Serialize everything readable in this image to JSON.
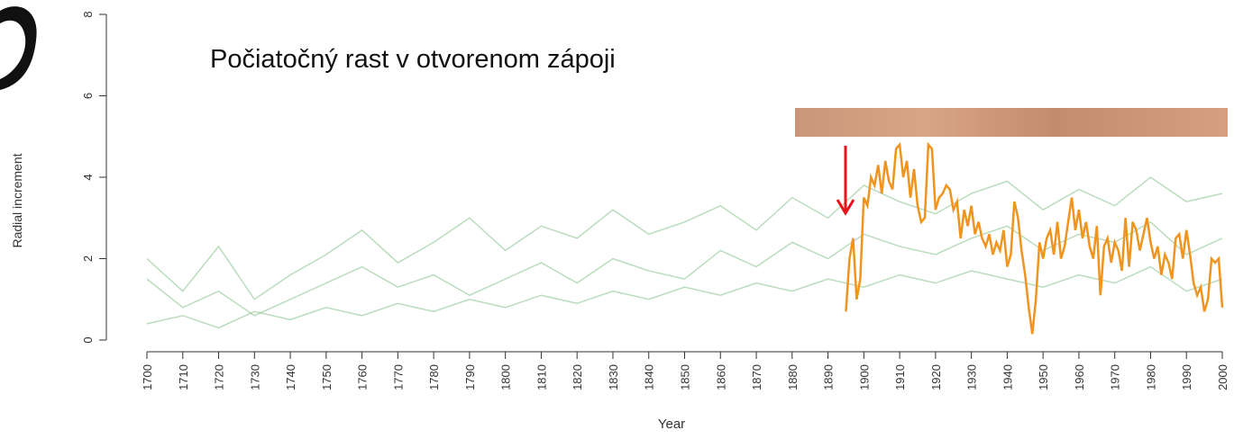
{
  "chart_data": {
    "type": "line",
    "annotation": "Počiatočný rast v otvorenom zápoji",
    "x_label": "Year",
    "y_label": "Radial increment",
    "xlim": [
      1700,
      2000
    ],
    "ylim": [
      0,
      8
    ],
    "xticks": [
      1700,
      1710,
      1720,
      1730,
      1740,
      1750,
      1760,
      1770,
      1780,
      1790,
      1800,
      1810,
      1820,
      1830,
      1840,
      1850,
      1860,
      1870,
      1880,
      1890,
      1900,
      1910,
      1920,
      1930,
      1940,
      1950,
      1960,
      1970,
      1980,
      1990,
      2000
    ],
    "yticks": [
      0,
      2,
      4,
      6,
      8
    ],
    "series": [
      {
        "color": "#8cc48f",
        "x": [
          1700,
          1710,
          1720,
          1730,
          1740,
          1750,
          1760,
          1770,
          1780,
          1790,
          1800,
          1810,
          1820,
          1830,
          1840,
          1850,
          1860,
          1870,
          1880,
          1890,
          1900,
          1910,
          1920,
          1930,
          1940,
          1950,
          1960,
          1970,
          1980,
          1990,
          2000
        ],
        "values": [
          1.5,
          0.8,
          1.2,
          0.6,
          1.0,
          1.4,
          1.8,
          1.3,
          1.6,
          1.1,
          1.5,
          1.9,
          1.4,
          2.0,
          1.7,
          1.5,
          2.2,
          1.8,
          2.4,
          2.0,
          2.6,
          2.3,
          2.1,
          2.5,
          2.8,
          2.2,
          2.6,
          2.4,
          2.9,
          2.1,
          2.5
        ]
      },
      {
        "color": "#8cc48f",
        "x": [
          1700,
          1710,
          1720,
          1730,
          1740,
          1750,
          1760,
          1770,
          1780,
          1790,
          1800,
          1810,
          1820,
          1830,
          1840,
          1850,
          1860,
          1870,
          1880,
          1890,
          1900,
          1910,
          1920,
          1930,
          1940,
          1950,
          1960,
          1970,
          1980,
          1990,
          2000
        ],
        "values": [
          0.4,
          0.6,
          0.3,
          0.7,
          0.5,
          0.8,
          0.6,
          0.9,
          0.7,
          1.0,
          0.8,
          1.1,
          0.9,
          1.2,
          1.0,
          1.3,
          1.1,
          1.4,
          1.2,
          1.5,
          1.3,
          1.6,
          1.4,
          1.7,
          1.5,
          1.3,
          1.6,
          1.4,
          1.8,
          1.2,
          1.5
        ]
      },
      {
        "color": "#8cc48f",
        "x": [
          1700,
          1710,
          1720,
          1730,
          1740,
          1750,
          1760,
          1770,
          1780,
          1790,
          1800,
          1810,
          1820,
          1830,
          1840,
          1850,
          1860,
          1870,
          1880,
          1890,
          1900,
          1910,
          1920,
          1930,
          1940,
          1950,
          1960,
          1970,
          1980,
          1990,
          2000
        ],
        "values": [
          2.0,
          1.2,
          2.3,
          1.0,
          1.6,
          2.1,
          2.7,
          1.9,
          2.4,
          3.0,
          2.2,
          2.8,
          2.5,
          3.2,
          2.6,
          2.9,
          3.3,
          2.7,
          3.5,
          3.0,
          3.8,
          3.4,
          3.1,
          3.6,
          3.9,
          3.2,
          3.7,
          3.3,
          4.0,
          3.4,
          3.6
        ]
      },
      {
        "color": "#f0941e",
        "x": [
          1895,
          1896,
          1897,
          1898,
          1899,
          1900,
          1901,
          1902,
          1903,
          1904,
          1905,
          1906,
          1907,
          1908,
          1909,
          1910,
          1911,
          1912,
          1913,
          1914,
          1915,
          1916,
          1917,
          1918,
          1919,
          1920,
          1921,
          1922,
          1923,
          1924,
          1925,
          1926,
          1927,
          1928,
          1929,
          1930,
          1931,
          1932,
          1933,
          1934,
          1935,
          1936,
          1937,
          1938,
          1939,
          1940,
          1941,
          1942,
          1943,
          1944,
          1945,
          1946,
          1947,
          1948,
          1949,
          1950,
          1951,
          1952,
          1953,
          1954,
          1955,
          1956,
          1957,
          1958,
          1959,
          1960,
          1961,
          1962,
          1963,
          1964,
          1965,
          1966,
          1967,
          1968,
          1969,
          1970,
          1971,
          1972,
          1973,
          1974,
          1975,
          1976,
          1977,
          1978,
          1979,
          1980,
          1981,
          1982,
          1983,
          1984,
          1985,
          1986,
          1987,
          1988,
          1989,
          1990,
          1991,
          1992,
          1993,
          1994,
          1995,
          1996,
          1997,
          1998,
          1999,
          2000
        ],
        "values": [
          0.7,
          2.0,
          2.5,
          1.0,
          1.5,
          3.5,
          3.3,
          4.0,
          3.8,
          4.3,
          3.6,
          4.4,
          3.9,
          3.7,
          4.7,
          4.8,
          4.0,
          4.4,
          3.5,
          4.2,
          3.3,
          2.9,
          3.0,
          4.8,
          4.7,
          3.2,
          3.5,
          3.6,
          3.8,
          3.7,
          3.2,
          3.4,
          2.5,
          3.2,
          2.8,
          3.3,
          2.6,
          2.9,
          2.5,
          2.3,
          2.6,
          2.1,
          2.4,
          2.2,
          2.7,
          1.8,
          2.1,
          3.4,
          3.0,
          2.2,
          1.6,
          0.8,
          0.15,
          1.0,
          2.4,
          2.0,
          2.5,
          2.7,
          2.1,
          2.9,
          2.0,
          2.3,
          2.9,
          3.5,
          2.7,
          3.2,
          2.5,
          2.9,
          2.3,
          2.0,
          2.8,
          1.1,
          2.3,
          2.5,
          1.9,
          2.4,
          2.2,
          1.7,
          3.0,
          1.8,
          2.9,
          2.7,
          2.2,
          2.6,
          3.0,
          2.4,
          2.0,
          2.3,
          1.6,
          2.1,
          1.9,
          1.5,
          2.5,
          2.6,
          2.0,
          2.7,
          2.1,
          1.4,
          1.1,
          1.3,
          0.7,
          1.0,
          2.0,
          1.9,
          2.0,
          0.8
        ]
      }
    ]
  }
}
